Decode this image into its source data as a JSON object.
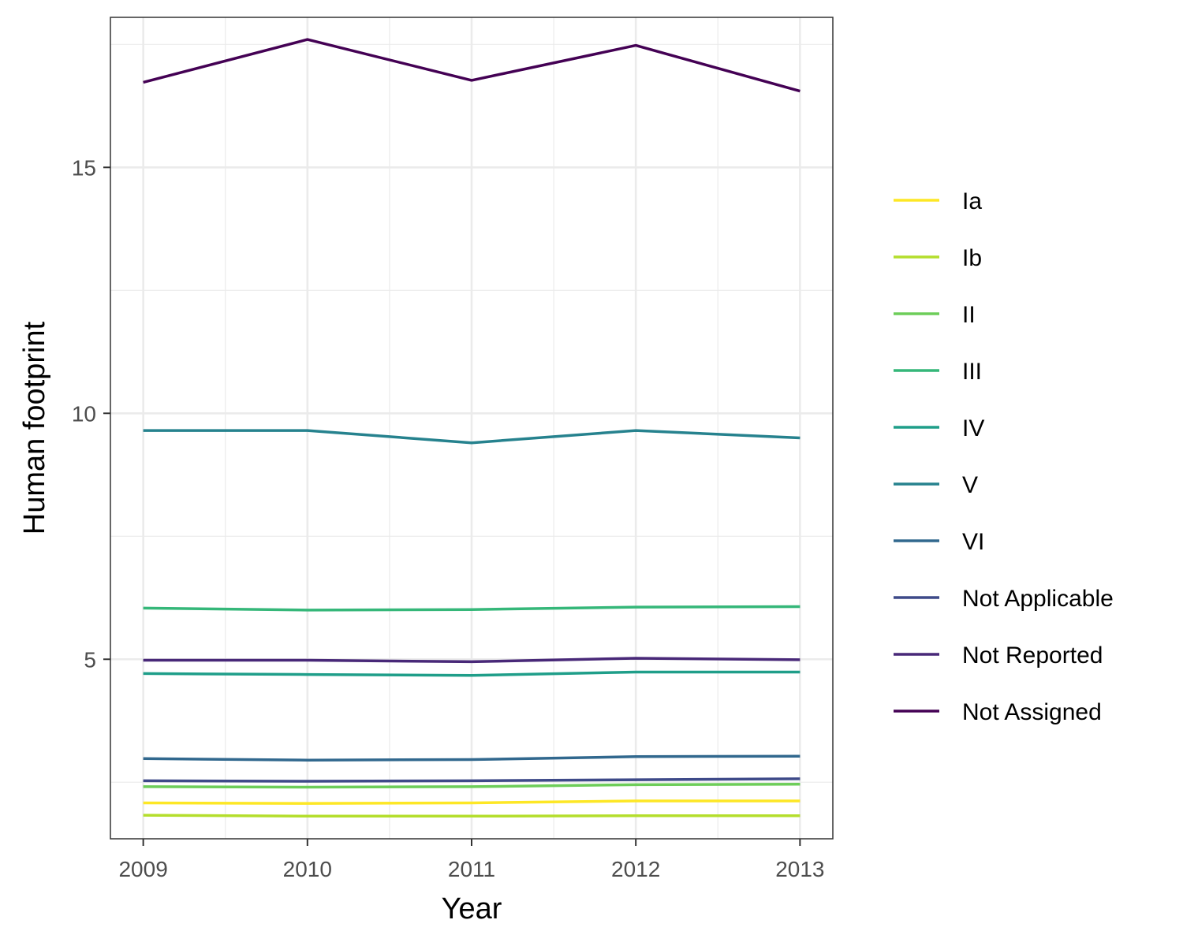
{
  "chart_data": {
    "type": "line",
    "title": "",
    "xlabel": "Year",
    "ylabel": "Human footprint",
    "x": [
      2009,
      2010,
      2011,
      2012,
      2013
    ],
    "xlim": [
      2008.8,
      2013.2
    ],
    "ylim": [
      1.35,
      18.05
    ],
    "y_ticks": [
      5,
      10,
      15
    ],
    "y_minor_ticks": [
      2.5,
      7.5,
      12.5,
      17.5
    ],
    "x_minor_ticks": [
      2009.5,
      2010.5,
      2011.5,
      2012.5
    ],
    "grid": true,
    "legend_position": "right",
    "series": [
      {
        "name": "Ia",
        "color": "#FDE725",
        "values": [
          2.08,
          2.07,
          2.08,
          2.12,
          2.12
        ]
      },
      {
        "name": "Ib",
        "color": "#B4DE2C",
        "values": [
          1.83,
          1.81,
          1.81,
          1.82,
          1.82
        ]
      },
      {
        "name": "II",
        "color": "#6DCD59",
        "values": [
          2.41,
          2.4,
          2.41,
          2.45,
          2.46
        ]
      },
      {
        "name": "III",
        "color": "#35B779",
        "values": [
          6.04,
          6.0,
          6.01,
          6.06,
          6.07
        ]
      },
      {
        "name": "IV",
        "color": "#1F9E89",
        "values": [
          4.71,
          4.69,
          4.67,
          4.74,
          4.74
        ]
      },
      {
        "name": "V",
        "color": "#26828E",
        "values": [
          9.65,
          9.65,
          9.4,
          9.65,
          9.5
        ]
      },
      {
        "name": "VI",
        "color": "#31688E",
        "values": [
          2.98,
          2.95,
          2.96,
          3.02,
          3.03
        ]
      },
      {
        "name": "Not Applicable",
        "color": "#3E4A89",
        "values": [
          2.53,
          2.52,
          2.53,
          2.55,
          2.57
        ]
      },
      {
        "name": "Not Reported",
        "color": "#482878",
        "values": [
          4.98,
          4.98,
          4.95,
          5.02,
          4.99
        ]
      },
      {
        "name": "Not Assigned",
        "color": "#440154",
        "values": [
          16.73,
          17.6,
          16.77,
          17.48,
          16.55
        ]
      }
    ]
  }
}
